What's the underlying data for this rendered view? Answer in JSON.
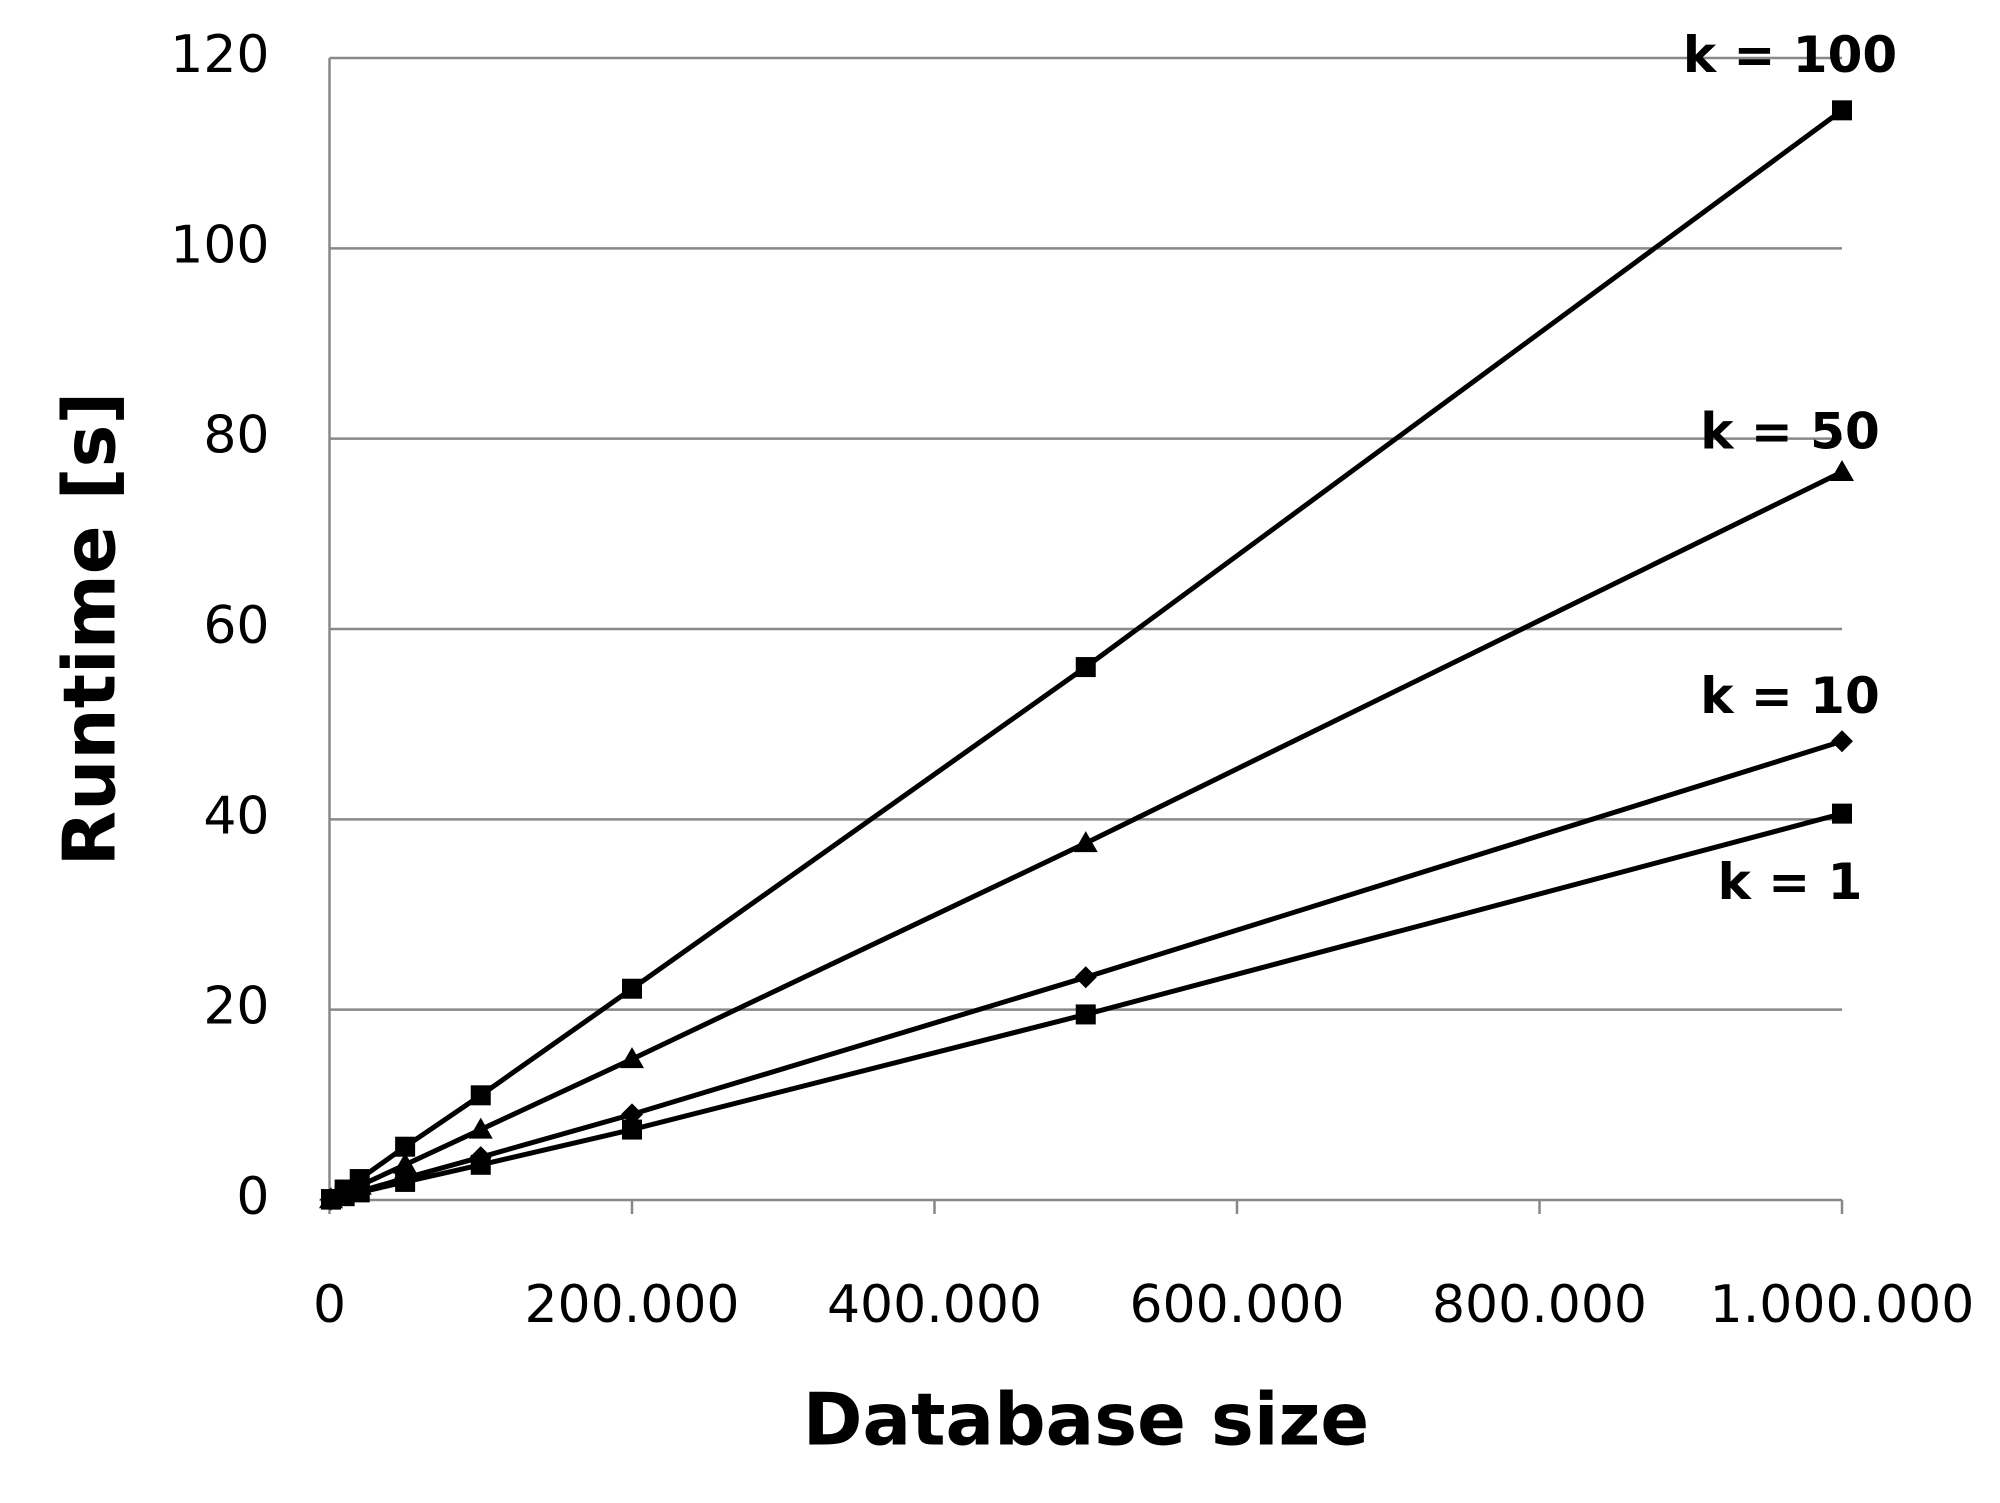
{
  "chart_data": {
    "type": "line",
    "x_label": "Database size",
    "y_label": "Runtime [s]",
    "x": [
      1000,
      10000,
      20000,
      50000,
      100000,
      200000,
      500000,
      1000000
    ],
    "series": [
      {
        "name": "k = 100",
        "color": "#000000",
        "marker": "square",
        "values": [
          0.1,
          1.1,
          2.2,
          5.6,
          11,
          22.2,
          56,
          114.5
        ]
      },
      {
        "name": "k = 50",
        "color": "#000000",
        "marker": "triangle",
        "values": [
          0.08,
          0.8,
          1.5,
          3.7,
          7.4,
          14.8,
          37.5,
          76.5
        ]
      },
      {
        "name": "k = 10",
        "color": "#000000",
        "marker": "diamond",
        "values": [
          0.05,
          0.5,
          0.9,
          2.3,
          4.5,
          9,
          23.4,
          48.2
        ]
      },
      {
        "name": "k = 1",
        "color": "#000000",
        "marker": "square",
        "values": [
          0.04,
          0.4,
          0.8,
          1.9,
          3.7,
          7.4,
          19.5,
          40.6
        ]
      }
    ],
    "xlim": [
      0,
      1000000
    ],
    "xticks": [
      0,
      {
        "value": 200000,
        "label": "200.000"
      },
      {
        "value": 400000,
        "label": "400.000"
      },
      {
        "value": 600000,
        "label": "600.000"
      },
      {
        "value": 800000,
        "label": "800.000"
      },
      {
        "value": 1000000,
        "label": "1.000.000"
      }
    ],
    "ylim": [
      0,
      120
    ],
    "yticks": [
      0,
      20,
      40,
      60,
      80,
      100,
      120
    ],
    "grid": true
  }
}
